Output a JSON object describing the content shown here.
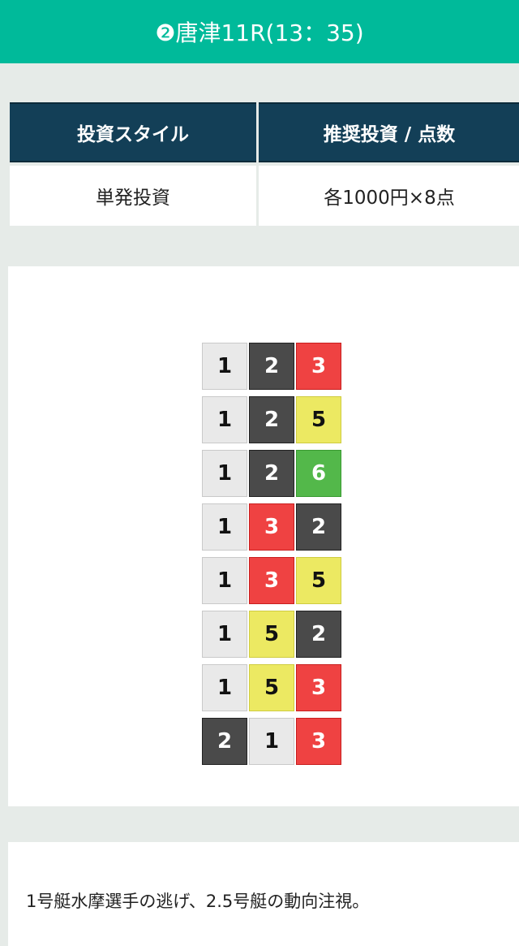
{
  "header": {
    "title": "❷唐津11R(13：35)"
  },
  "table": {
    "headers": [
      "投資スタイル",
      "推奨投資 / 点数"
    ],
    "values": [
      "単発投資",
      "各1000円×8点"
    ]
  },
  "bets": [
    [
      1,
      2,
      3
    ],
    [
      1,
      2,
      5
    ],
    [
      1,
      2,
      6
    ],
    [
      1,
      3,
      2
    ],
    [
      1,
      3,
      5
    ],
    [
      1,
      5,
      2
    ],
    [
      1,
      5,
      3
    ],
    [
      2,
      1,
      3
    ]
  ],
  "boat_colors": {
    "1": "#e9e9e9",
    "2": "#4a4a4a",
    "3": "#ef4242",
    "5": "#ece962",
    "6": "#53b84a"
  },
  "accent": "#00ba9a",
  "comment": "1号艇水摩選手の逃げ、2.5号艇の動向注視。"
}
